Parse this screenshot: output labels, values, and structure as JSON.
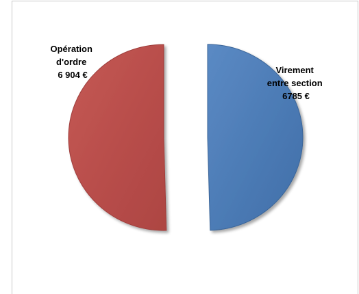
{
  "chart_data": {
    "type": "pie",
    "exploded": true,
    "style": "3d-shaded",
    "slices": [
      {
        "label_lines": [
          "Opération",
          "d'ordre",
          "6 904 €"
        ],
        "value": 6904,
        "color": "#c0504d"
      },
      {
        "label_lines": [
          "Virement",
          "entre section",
          "6785 €"
        ],
        "value": 6785,
        "color": "#4f81bd"
      }
    ],
    "legend": "none"
  }
}
